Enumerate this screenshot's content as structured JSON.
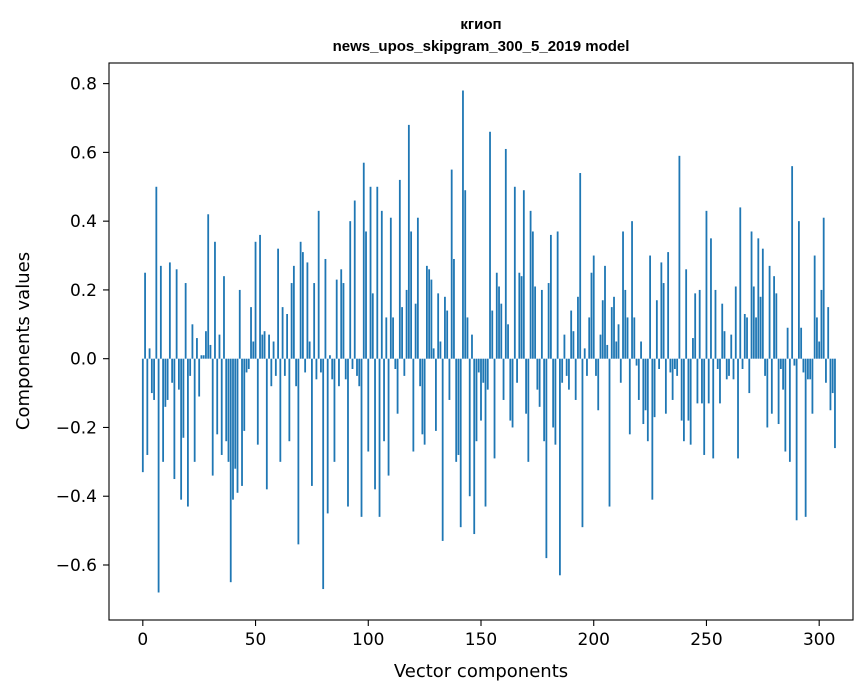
{
  "chart_data": {
    "type": "bar",
    "title_line1": "кгиоп",
    "title_line2": "news_upos_skipgram_300_5_2019 model",
    "xlabel": "Vector components",
    "ylabel": "Components values",
    "xlim": [
      -15,
      315
    ],
    "ylim": [
      -0.76,
      0.86
    ],
    "xticks": [
      0,
      50,
      100,
      150,
      200,
      250,
      300
    ],
    "xtick_labels": [
      "0",
      "50",
      "100",
      "150",
      "200",
      "250",
      "300"
    ],
    "yticks": [
      -0.6,
      -0.4,
      -0.2,
      0.0,
      0.2,
      0.4,
      0.6,
      0.8
    ],
    "ytick_labels": [
      "−0.6",
      "−0.4",
      "−0.2",
      "0.0",
      "0.2",
      "0.4",
      "0.6",
      "0.8"
    ],
    "bar_color": "#1f77b4",
    "values": [
      -0.33,
      0.25,
      -0.28,
      0.03,
      -0.1,
      -0.12,
      0.5,
      -0.68,
      0.27,
      -0.3,
      -0.14,
      -0.12,
      0.28,
      -0.07,
      -0.35,
      0.26,
      -0.09,
      -0.41,
      -0.23,
      0.22,
      -0.43,
      -0.05,
      0.1,
      -0.3,
      0.06,
      -0.11,
      0.01,
      0.01,
      0.08,
      0.42,
      0.04,
      -0.34,
      0.34,
      -0.22,
      0.07,
      -0.28,
      0.24,
      -0.24,
      -0.3,
      -0.65,
      -0.41,
      -0.32,
      -0.39,
      0.2,
      -0.37,
      -0.21,
      -0.04,
      -0.03,
      0.15,
      0.05,
      0.34,
      -0.25,
      0.36,
      0.07,
      0.08,
      -0.38,
      0.07,
      -0.08,
      0.05,
      -0.05,
      0.32,
      -0.3,
      0.15,
      -0.05,
      0.13,
      -0.24,
      0.22,
      0.27,
      -0.08,
      -0.54,
      0.34,
      0.31,
      -0.04,
      0.28,
      0.05,
      -0.37,
      0.22,
      -0.06,
      0.43,
      -0.04,
      -0.67,
      0.29,
      -0.45,
      0.01,
      -0.06,
      -0.3,
      0.23,
      -0.08,
      0.26,
      0.22,
      -0.06,
      -0.43,
      0.4,
      -0.03,
      0.46,
      -0.05,
      -0.08,
      -0.46,
      0.57,
      0.37,
      -0.27,
      0.5,
      0.19,
      -0.38,
      0.5,
      -0.46,
      0.43,
      -0.24,
      0.12,
      -0.34,
      0.41,
      0.12,
      -0.03,
      -0.16,
      0.52,
      0.15,
      -0.05,
      0.2,
      0.68,
      0.37,
      -0.27,
      0.16,
      0.41,
      -0.08,
      -0.22,
      -0.25,
      0.27,
      0.26,
      0.23,
      0.03,
      -0.21,
      0.19,
      0.05,
      -0.53,
      0.18,
      0.14,
      -0.12,
      0.55,
      0.29,
      -0.3,
      -0.28,
      -0.49,
      0.78,
      0.49,
      0.12,
      -0.4,
      0.07,
      -0.51,
      -0.24,
      -0.04,
      -0.18,
      -0.07,
      -0.43,
      -0.09,
      0.66,
      0.14,
      -0.29,
      0.25,
      0.21,
      0.16,
      -0.12,
      0.61,
      0.1,
      -0.18,
      -0.2,
      0.5,
      -0.07,
      0.25,
      0.24,
      0.49,
      -0.16,
      -0.3,
      0.43,
      0.37,
      0.21,
      -0.09,
      -0.14,
      0.2,
      -0.24,
      -0.58,
      0.22,
      0.36,
      -0.2,
      -0.25,
      0.37,
      -0.63,
      -0.07,
      0.07,
      -0.05,
      -0.09,
      0.14,
      0.08,
      -0.12,
      0.18,
      0.54,
      -0.49,
      0.03,
      -0.05,
      0.12,
      0.25,
      0.3,
      -0.05,
      -0.15,
      0.07,
      0.17,
      0.27,
      0.04,
      -0.43,
      0.15,
      0.18,
      0.05,
      0.1,
      -0.07,
      0.37,
      0.2,
      0.12,
      -0.22,
      0.4,
      0.12,
      -0.02,
      -0.12,
      0.05,
      -0.19,
      -0.15,
      -0.24,
      0.3,
      -0.41,
      -0.17,
      0.17,
      -0.03,
      0.28,
      0.22,
      -0.16,
      0.31,
      -0.04,
      -0.12,
      -0.03,
      -0.05,
      0.59,
      -0.18,
      -0.24,
      0.26,
      -0.18,
      -0.25,
      0.06,
      0.19,
      -0.13,
      0.2,
      -0.13,
      -0.28,
      0.43,
      -0.13,
      0.35,
      -0.29,
      0.2,
      -0.03,
      -0.13,
      0.16,
      0.08,
      -0.06,
      -0.05,
      0.07,
      -0.06,
      0.21,
      -0.29,
      0.44,
      -0.03,
      0.13,
      0.12,
      -0.1,
      0.37,
      0.21,
      0.12,
      0.35,
      0.18,
      0.32,
      -0.05,
      -0.2,
      0.27,
      -0.16,
      0.24,
      0.19,
      -0.19,
      -0.03,
      -0.09,
      -0.27,
      0.09,
      -0.3,
      0.56,
      -0.02,
      -0.47,
      0.4,
      0.09,
      -0.04,
      -0.46,
      -0.06,
      -0.06,
      -0.16,
      0.3,
      0.12,
      0.05,
      0.2,
      0.41,
      -0.07,
      0.15,
      -0.15,
      -0.1,
      -0.26
    ]
  }
}
